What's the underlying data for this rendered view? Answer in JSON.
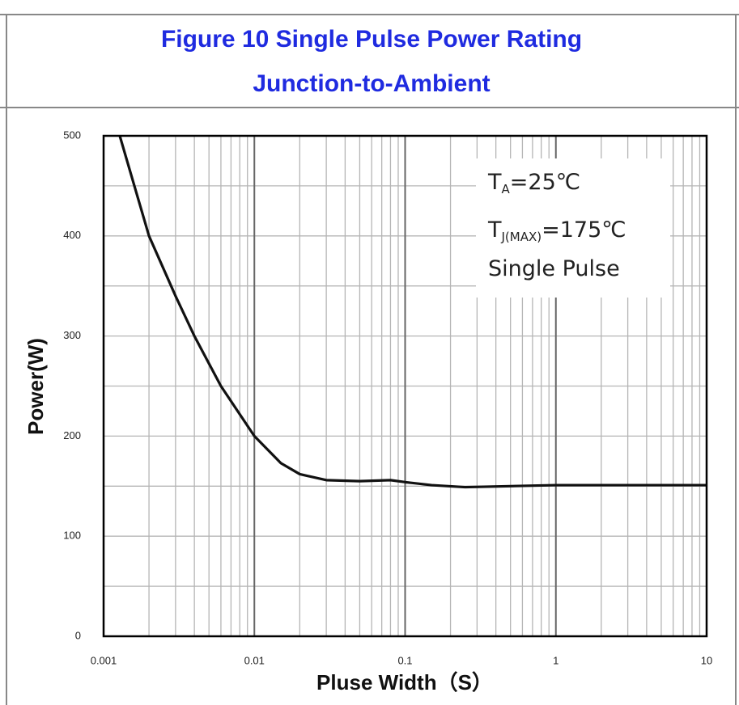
{
  "chart_data": {
    "type": "line",
    "title": "Figure 10 Single Pulse Power Rating",
    "subtitle": "Junction-to-Ambient",
    "x_label": "Pluse Width（S）",
    "y_label": "Power(W)",
    "xscale": "log",
    "xlim": [
      0.001,
      10
    ],
    "xticks": [
      0.001,
      0.01,
      0.1,
      1,
      10
    ],
    "ylim": [
      0,
      500
    ],
    "yticks": [
      0,
      100,
      200,
      300,
      400,
      500
    ],
    "yminorticks": [
      50,
      150,
      250,
      350,
      450
    ],
    "grid": true,
    "annotations": [
      {
        "main": "T",
        "sub": "A",
        "rest": "=25℃"
      },
      {
        "main": "T",
        "sub": "J(MAX)",
        "rest": "=175℃"
      },
      {
        "main": "Single Pulse"
      }
    ],
    "series": [
      {
        "color": "#111111",
        "x": [
          0.00128,
          0.002,
          0.003,
          0.004,
          0.006,
          0.01,
          0.015,
          0.02,
          0.03,
          0.05,
          0.08,
          0.1,
          0.15,
          0.25,
          0.5,
          1,
          10
        ],
        "values": [
          500,
          400,
          340,
          300,
          250,
          200,
          173,
          162,
          156,
          155,
          156,
          154,
          151,
          149,
          150,
          151,
          151
        ]
      }
    ]
  }
}
